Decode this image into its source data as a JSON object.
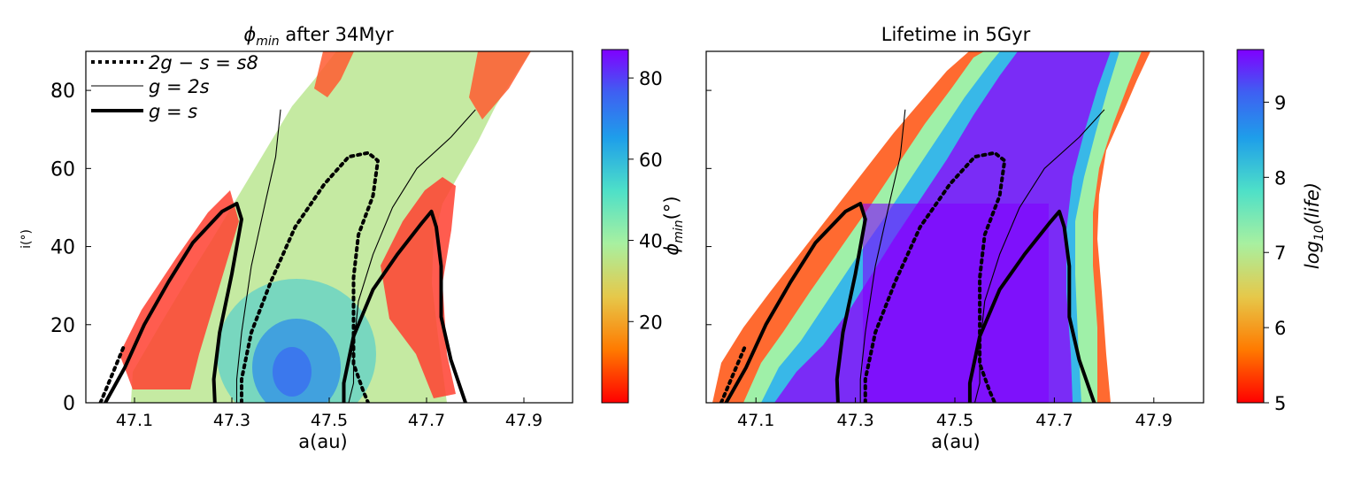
{
  "chart_data": [
    {
      "type": "heatmap",
      "title": "ϕmin after 34Myr",
      "title_parts": {
        "symbol": "ϕ",
        "sub": "min",
        "rest": " after 34Myr"
      },
      "xlabel": "a(au)",
      "ylabel": "i(°)",
      "xlim": [
        47.0,
        48.0
      ],
      "ylim": [
        0,
        90
      ],
      "xticks": [
        47.1,
        47.3,
        47.5,
        47.7,
        47.9
      ],
      "xtick_labels": [
        "47.1",
        "47.3",
        "47.5",
        "47.7",
        "47.9"
      ],
      "yticks": [
        0,
        20,
        40,
        60,
        80
      ],
      "ytick_labels": [
        "0",
        "20",
        "40",
        "60",
        "80"
      ],
      "colorbar": {
        "label": "ϕmin(°)",
        "label_parts": {
          "symbol": "ϕ",
          "sub": "min",
          "rest": "(°)"
        },
        "range": [
          0,
          87
        ],
        "ticks": [
          20,
          40,
          60,
          80
        ],
        "tick_labels": [
          "20",
          "40",
          "60",
          "80"
        ],
        "colormap": "rainbow_r"
      },
      "legend": {
        "position": "top-left",
        "entries": [
          {
            "label": "2g − s = s8",
            "style": "dotted"
          },
          {
            "label": "g = 2s",
            "style": "thin"
          },
          {
            "label": "g = s",
            "style": "thick"
          }
        ]
      },
      "curves": [
        {
          "name": "g=s left",
          "style": "thick",
          "points": [
            [
              47.04,
              0
            ],
            [
              47.08,
              9
            ],
            [
              47.12,
              20
            ],
            [
              47.17,
              31
            ],
            [
              47.22,
              41
            ],
            [
              47.28,
              49
            ],
            [
              47.31,
              51
            ],
            [
              47.32,
              47
            ],
            [
              47.3,
              33
            ],
            [
              47.275,
              18
            ],
            [
              47.263,
              6
            ],
            [
              47.265,
              0
            ]
          ]
        },
        {
          "name": "2g-s=s8 left",
          "style": "dotted",
          "points": [
            [
              47.03,
              0
            ],
            [
              47.05,
              6
            ],
            [
              47.08,
              15
            ]
          ]
        },
        {
          "name": "g=2s left",
          "style": "thin",
          "points": [
            [
              47.31,
              0
            ],
            [
              47.31,
              6
            ],
            [
              47.32,
              18
            ],
            [
              47.34,
              35
            ],
            [
              47.37,
              52
            ],
            [
              47.39,
              63
            ],
            [
              47.4,
              75
            ]
          ]
        },
        {
          "name": "2g-s=s8 center",
          "style": "dotted",
          "points": [
            [
              47.32,
              0
            ],
            [
              47.32,
              6
            ],
            [
              47.34,
              18
            ],
            [
              47.38,
              31
            ],
            [
              47.43,
              45
            ],
            [
              47.49,
              56
            ],
            [
              47.54,
              63
            ],
            [
              47.58,
              64
            ],
            [
              47.6,
              62
            ],
            [
              47.59,
              53
            ],
            [
              47.56,
              43
            ],
            [
              47.55,
              32
            ],
            [
              47.55,
              20
            ],
            [
              47.55,
              10
            ],
            [
              47.57,
              3
            ],
            [
              47.58,
              0
            ]
          ]
        },
        {
          "name": "g=2s right",
          "style": "thin",
          "points": [
            [
              47.54,
              0
            ],
            [
              47.55,
              5
            ],
            [
              47.55,
              14
            ],
            [
              47.56,
              26
            ],
            [
              47.59,
              38
            ],
            [
              47.63,
              50
            ],
            [
              47.68,
              60
            ],
            [
              47.75,
              68
            ],
            [
              47.8,
              75
            ]
          ]
        },
        {
          "name": "g=s right",
          "style": "thick",
          "points": [
            [
              47.53,
              0
            ],
            [
              47.53,
              5
            ],
            [
              47.55,
              17
            ],
            [
              47.59,
              29
            ],
            [
              47.64,
              38
            ],
            [
              47.69,
              46
            ],
            [
              47.71,
              49
            ],
            [
              47.72,
              45
            ],
            [
              47.73,
              35
            ],
            [
              47.73,
              22
            ],
            [
              47.75,
              11
            ],
            [
              47.78,
              0
            ]
          ]
        }
      ]
    },
    {
      "type": "heatmap",
      "title": "Lifetime in 5Gyr",
      "xlabel": "a(au)",
      "ylabel": "",
      "xlim": [
        47.0,
        48.0
      ],
      "ylim": [
        0,
        90
      ],
      "xticks": [
        47.1,
        47.3,
        47.5,
        47.7,
        47.9
      ],
      "xtick_labels": [
        "47.1",
        "47.3",
        "47.5",
        "47.7",
        "47.9"
      ],
      "yticks": [
        0,
        20,
        40,
        60,
        80
      ],
      "ytick_labels": [
        "",
        "",
        "",
        "",
        ""
      ],
      "colorbar": {
        "label": "log10(life)",
        "label_parts": {
          "pre": "log",
          "sub": "10",
          "rest": "(life)"
        },
        "range": [
          5,
          9.7
        ],
        "ticks": [
          5,
          6,
          7,
          8,
          9
        ],
        "tick_labels": [
          "5",
          "6",
          "7",
          "8",
          "9"
        ],
        "colormap": "rainbow_r"
      }
    }
  ],
  "colors": {
    "gradient_low": "#ff0000",
    "gradient_high": "#8000ff"
  }
}
